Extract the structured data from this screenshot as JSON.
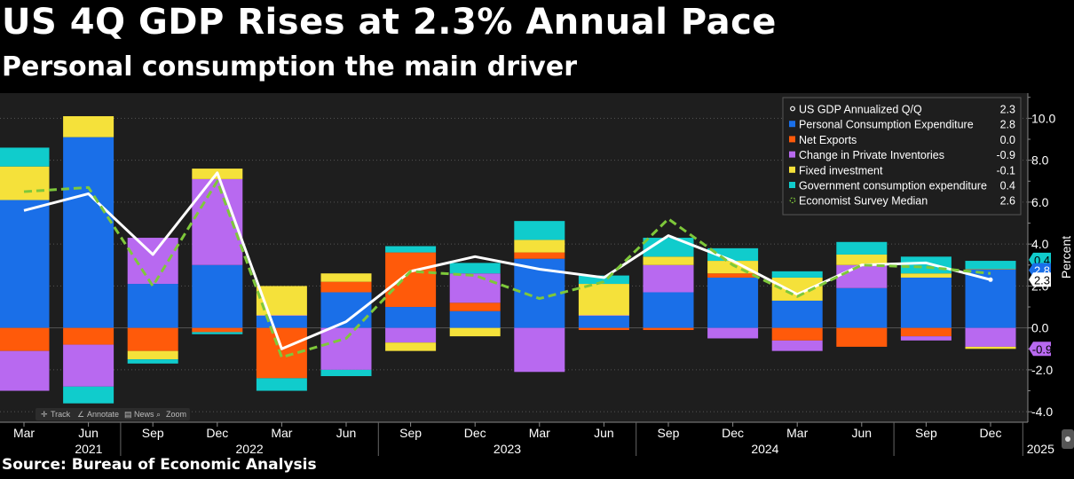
{
  "header": {
    "title": "US 4Q GDP Rises at 2.3% Annual Pace",
    "subtitle": "Personal consumption the main driver"
  },
  "source": "Source: Bureau of Economic Analysis",
  "toolbar": {
    "items": [
      {
        "label": "Track",
        "icon": "crosshair-icon"
      },
      {
        "label": "Annotate",
        "icon": "pencil-icon"
      },
      {
        "label": "News",
        "icon": "news-icon"
      },
      {
        "label": "Zoom",
        "icon": "zoom-icon"
      }
    ]
  },
  "chart_data": {
    "type": "bar",
    "stacked": true,
    "ylabel": "Percent",
    "ylim": [
      -4.5,
      11.2
    ],
    "yticks": [
      -4.0,
      -2.0,
      0.0,
      2.0,
      4.0,
      6.0,
      8.0,
      10.0
    ],
    "ytick_labels": [
      "-4.0",
      "-2.0",
      "0.0",
      "2.0",
      "4.0",
      "6.0",
      "8.0",
      "10.0"
    ],
    "month_labels": [
      "Mar",
      "Jun",
      "Sep",
      "Dec",
      "Mar",
      "Jun",
      "Sep",
      "Dec",
      "Mar",
      "Jun",
      "Sep",
      "Dec",
      "Mar",
      "Jun",
      "Sep",
      "Dec"
    ],
    "year_labels": [
      {
        "label": "2021",
        "after_index": 1.5
      },
      {
        "label": "2022",
        "after_index": 5.5
      },
      {
        "label": "2023",
        "after_index": 9.5
      },
      {
        "label": "2024",
        "after_index": 13.5
      },
      {
        "label": "2025",
        "after_index": 15.5
      }
    ],
    "categories": [
      "1Q 2021",
      "2Q 2021",
      "3Q 2021",
      "4Q 2021",
      "1Q 2022",
      "2Q 2022",
      "3Q 2022",
      "4Q 2022",
      "1Q 2023",
      "2Q 2023",
      "3Q 2023",
      "4Q 2023",
      "1Q 2024",
      "2Q 2024",
      "3Q 2024",
      "4Q 2024"
    ],
    "series": [
      {
        "name": "Personal Consumption Expenditure",
        "color": "#1a6fe8",
        "values": [
          6.1,
          9.1,
          2.1,
          3.0,
          0.6,
          1.7,
          1.0,
          0.8,
          3.3,
          0.6,
          1.7,
          2.4,
          1.3,
          1.9,
          2.4,
          2.8
        ]
      },
      {
        "name": "Net Exports",
        "color": "#ff5a0a",
        "values": [
          -1.1,
          -0.8,
          -1.1,
          -0.2,
          -2.4,
          0.5,
          2.6,
          0.4,
          0.3,
          -0.1,
          -0.1,
          0.2,
          -0.6,
          -0.9,
          -0.4,
          0.0
        ]
      },
      {
        "name": "Change in Private Inventories",
        "color": "#b869f0",
        "values": [
          -1.9,
          -2.0,
          2.2,
          4.1,
          0.0,
          -2.0,
          -0.7,
          1.4,
          -2.1,
          0.0,
          1.3,
          -0.5,
          -0.5,
          1.1,
          -0.2,
          -0.9
        ]
      },
      {
        "name": "Fixed investment",
        "color": "#f5e13a",
        "values": [
          1.6,
          1.0,
          -0.4,
          0.5,
          1.4,
          0.4,
          -0.4,
          -0.4,
          0.6,
          1.5,
          0.4,
          0.6,
          1.1,
          0.5,
          0.2,
          -0.1
        ]
      },
      {
        "name": "Government consumption expenditure",
        "color": "#10cccc",
        "values": [
          0.9,
          -0.8,
          -0.2,
          -0.1,
          -0.6,
          -0.3,
          0.3,
          0.5,
          0.9,
          0.4,
          0.9,
          0.6,
          0.3,
          0.6,
          0.8,
          0.4
        ]
      }
    ],
    "lines": [
      {
        "name": "US GDP Annualized Q/Q",
        "color": "#ffffff",
        "style": "solid",
        "values": [
          5.6,
          6.4,
          3.5,
          7.4,
          -1.0,
          0.3,
          2.7,
          3.4,
          2.8,
          2.4,
          4.4,
          3.2,
          1.6,
          3.0,
          3.1,
          2.3
        ]
      },
      {
        "name": "Economist Survey Median",
        "color": "#7ec83a",
        "style": "dashed",
        "values": [
          6.5,
          6.7,
          2.0,
          7.0,
          -1.4,
          -0.5,
          2.7,
          2.5,
          1.4,
          2.2,
          5.2,
          3.0,
          1.5,
          3.0,
          2.9,
          2.6
        ]
      }
    ],
    "legend": {
      "position": "top-right",
      "entries": [
        {
          "name": "US GDP Annualized Q/Q",
          "value": "2.3",
          "color": "#ffffff",
          "marker": "line"
        },
        {
          "name": "Personal Consumption Expenditure",
          "value": "2.8",
          "color": "#1a6fe8",
          "marker": "square"
        },
        {
          "name": "Net Exports",
          "value": "0.0",
          "color": "#ff5a0a",
          "marker": "square"
        },
        {
          "name": "Change in Private Inventories",
          "value": "-0.9",
          "color": "#b869f0",
          "marker": "square"
        },
        {
          "name": "Fixed investment",
          "value": "-0.1",
          "color": "#f5e13a",
          "marker": "square"
        },
        {
          "name": "Government consumption expenditure",
          "value": "0.4",
          "color": "#10cccc",
          "marker": "square"
        },
        {
          "name": "Economist Survey Median",
          "value": "2.6",
          "color": "#7ec83a",
          "marker": "dashed"
        }
      ]
    },
    "last_value_tags": [
      {
        "value": "0.4",
        "color": "#10cccc",
        "text_color": "#000000",
        "anchor_value": 3.25
      },
      {
        "value": "2.8",
        "color": "#1a6fe8",
        "text_color": "#ffffff",
        "anchor_value": 2.75
      },
      {
        "value": "2.3",
        "color": "#ffffff",
        "text_color": "#000000",
        "anchor_value": 2.3
      },
      {
        "value": "-0.9",
        "color": "#b869f0",
        "text_color": "#000000",
        "anchor_value": -1.0
      }
    ],
    "colors": {
      "plot_background": "#1e1e1e",
      "grid": "#555555"
    }
  }
}
